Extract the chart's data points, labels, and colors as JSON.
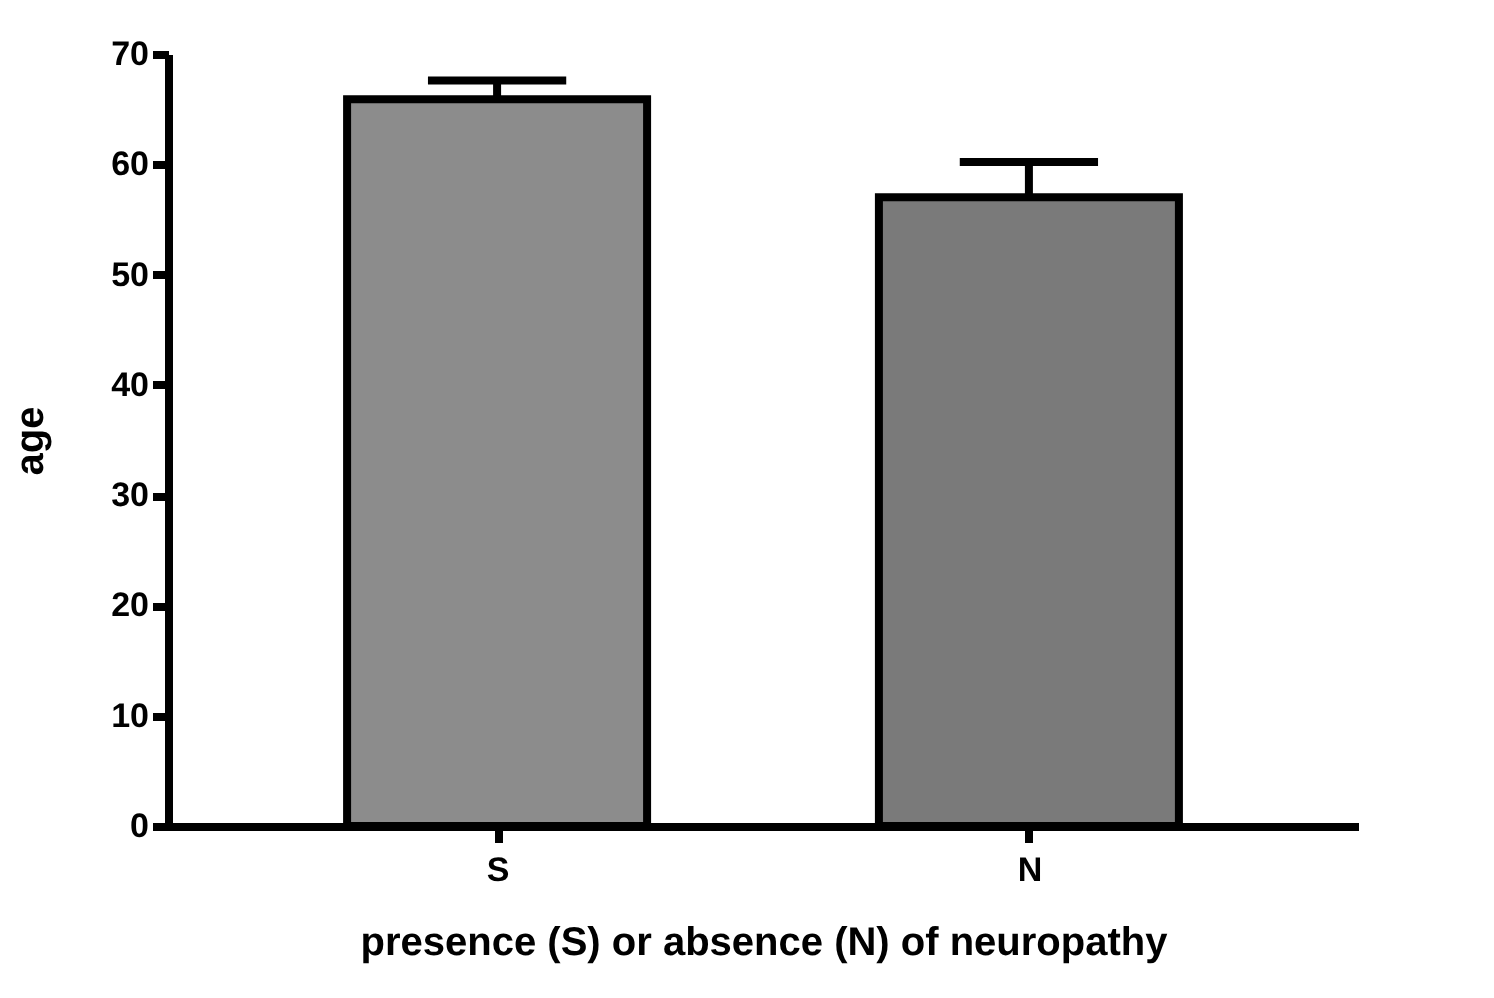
{
  "chart_data": {
    "type": "bar",
    "xlabel": "presence (S) or absence (N) of neuropathy",
    "ylabel": "age",
    "categories": [
      "S",
      "N"
    ],
    "values": [
      65.9,
      57.0
    ],
    "errors": [
      [
        65.9,
        67.6
      ],
      [
        57.0,
        60.2
      ]
    ],
    "colors": [
      "#8c8c8c",
      "#7a7a7a"
    ],
    "ylim": [
      0,
      70
    ],
    "yticks": [
      0,
      10,
      20,
      30,
      40,
      50,
      60,
      70
    ],
    "grid": false
  }
}
